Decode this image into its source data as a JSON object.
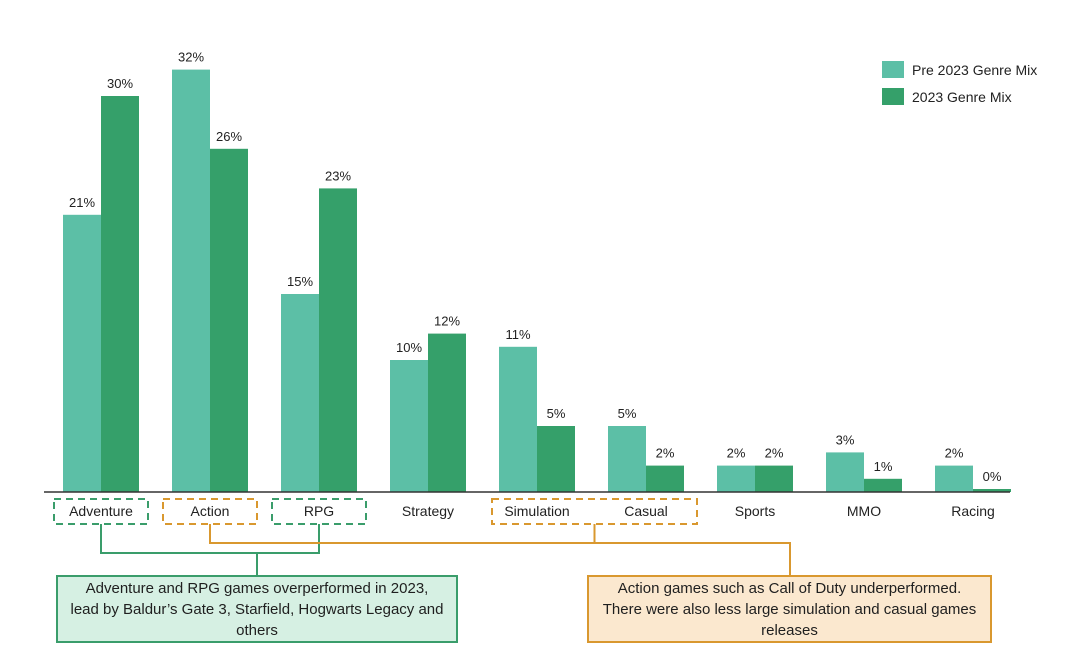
{
  "chart_data": {
    "type": "bar",
    "title": "",
    "xlabel": "",
    "ylabel": "",
    "ylim": [
      0,
      32
    ],
    "categories": [
      "Adventure",
      "Action",
      "RPG",
      "Strategy",
      "Simulation",
      "Casual",
      "Sports",
      "MMO",
      "Racing"
    ],
    "series": [
      {
        "name": "Pre 2023 Genre Mix",
        "color": "#5cbfa6",
        "values": [
          21,
          32,
          15,
          10,
          11,
          5,
          2,
          3,
          2
        ],
        "labels": [
          "21%",
          "32%",
          "15%",
          "10%",
          "11%",
          "5%",
          "2%",
          "3%",
          "2%"
        ]
      },
      {
        "name": "2023 Genre Mix",
        "color": "#35a06a",
        "values": [
          30,
          26,
          23,
          12,
          5,
          2,
          2,
          1,
          0
        ],
        "labels": [
          "30%",
          "26%",
          "23%",
          "12%",
          "5%",
          "2%",
          "2%",
          "1%",
          "0%"
        ]
      }
    ],
    "legend": "top-right",
    "grid": false
  },
  "annotations": {
    "green_note": "Adventure and RPG games overperformed in 2023, lead by Baldur’s Gate 3, Starfield, Hogwarts Legacy and others",
    "orange_note": "Action games such as Call of Duty underperformed. There were also less large simulation and casual games releases",
    "green_color": "#3a9d6b",
    "orange_color": "#d9982f",
    "green_highlighted": [
      "Adventure",
      "RPG"
    ],
    "orange_highlighted": [
      "Action",
      "Simulation",
      "Casual"
    ]
  }
}
